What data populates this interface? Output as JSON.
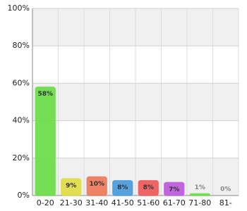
{
  "chart_data": {
    "type": "bar",
    "categories": [
      "0-20",
      "21-30",
      "31-40",
      "41-50",
      "51-60",
      "61-70",
      "71-80",
      "81-"
    ],
    "values": [
      58,
      9,
      10,
      8,
      8,
      7,
      1,
      0
    ],
    "value_labels": [
      "58%",
      "9%",
      "10%",
      "8%",
      "8%",
      "7%",
      "1%",
      "0%"
    ],
    "colors": [
      "#66dd44",
      "#e0dc40",
      "#ee7755",
      "#4499dd",
      "#ee5555",
      "#bb55dd",
      "#66dd44",
      "#aaaaaa"
    ],
    "ylim": [
      0,
      100
    ],
    "yticks": [
      {
        "value": 0,
        "label": "0%"
      },
      {
        "value": 20,
        "label": "20%"
      },
      {
        "value": 40,
        "label": "40%"
      },
      {
        "value": 60,
        "label": "60%"
      },
      {
        "value": 80,
        "label": "80%"
      },
      {
        "value": 100,
        "label": "100%"
      }
    ],
    "grid": true
  }
}
